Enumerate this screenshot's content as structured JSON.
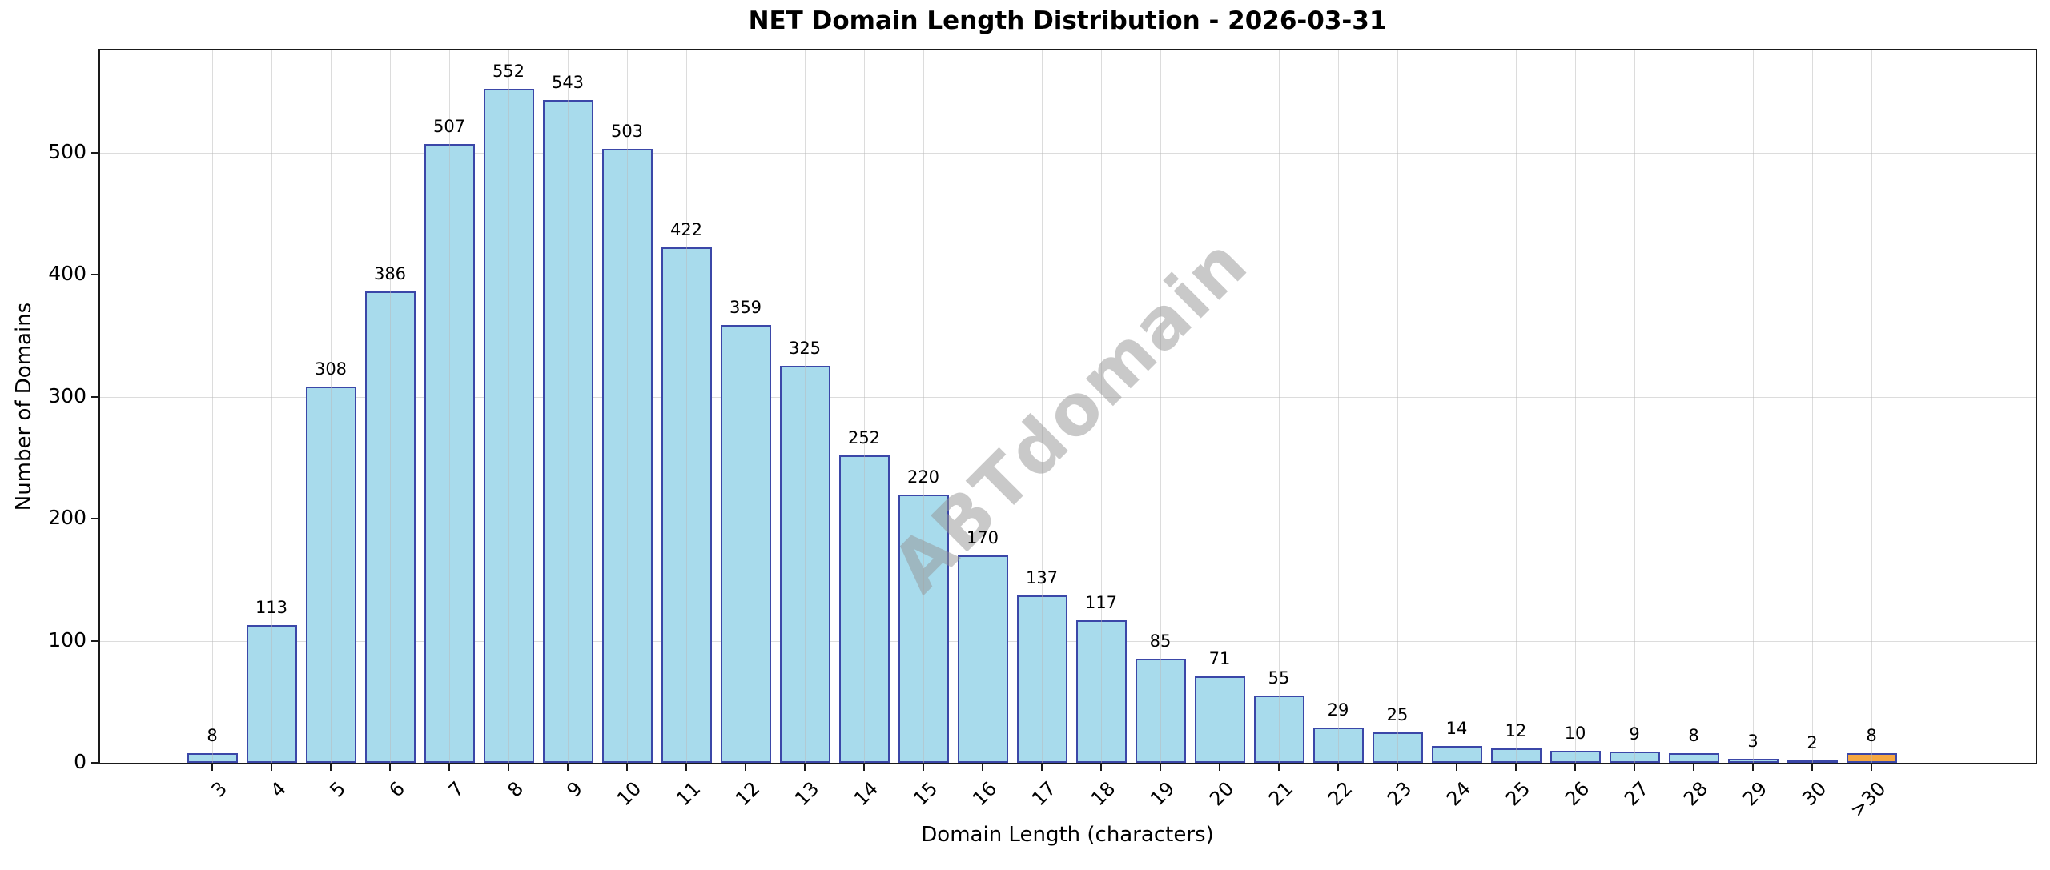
{
  "chart_data": {
    "type": "bar",
    "title": "NET Domain Length Distribution - 2026-03-31",
    "xlabel": "Domain Length (characters)",
    "ylabel": "Number of Domains",
    "categories": [
      "3",
      "4",
      "5",
      "6",
      "7",
      "8",
      "9",
      "10",
      "11",
      "12",
      "13",
      "14",
      "15",
      "16",
      "17",
      "18",
      "19",
      "20",
      "21",
      "22",
      "23",
      "24",
      "25",
      "26",
      "27",
      "28",
      "29",
      "30",
      ">30"
    ],
    "values": [
      8,
      113,
      308,
      386,
      507,
      552,
      543,
      503,
      422,
      359,
      325,
      252,
      220,
      170,
      137,
      117,
      85,
      71,
      55,
      29,
      25,
      14,
      12,
      10,
      9,
      8,
      3,
      2,
      8
    ],
    "yticks": [
      0,
      100,
      200,
      300,
      400,
      500
    ],
    "ylim": [
      0,
      583
    ],
    "grid": true,
    "legend_position": "none",
    "watermark": "ABTdomain",
    "colors": {
      "bar_fill": "#a8dbec",
      "bar_edge": "#3b47a8",
      "highlight_fill": "#f5a742",
      "gridline": "#dcdcdc",
      "spine": "#1a1a1a"
    },
    "highlight_index": 28
  }
}
